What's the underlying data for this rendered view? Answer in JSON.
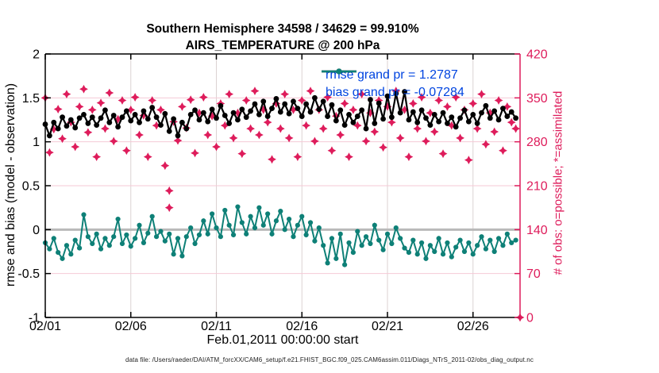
{
  "figure": {
    "title_line1": "Southern Hemisphere 34598 / 34629 = 99.910%",
    "title_line2": "AIRS_TEMPERATURE @ 200 hPa",
    "footer": "data file: /Users/raeder/DAI/ATM_forcXX/CAM6_setup/f.e21.FHIST_BGC.f09_025.CAM6assim.011/Diags_NTrS_2011-02/obs_diag_output.nc"
  },
  "legend": {
    "text_color": "#0044e0",
    "items": [
      {
        "series": "rmse",
        "label": "rmse grand pr = 1.2787",
        "color": "#000000"
      },
      {
        "series": "bias",
        "label": "bias grand pr = -0.07284",
        "color": "#0e8077"
      }
    ]
  },
  "colors": {
    "rmse": "#000000",
    "bias": "#0e8077",
    "obs": "#de1c5b",
    "zero_line": "#b9b9b9",
    "grid_horizontal": "#f5c9d6",
    "grid_vertical": "#dcd3d3",
    "axis_black": "#000000",
    "axis_right": "#de1c5b"
  },
  "chart_data": {
    "type": "line",
    "title": "Southern Hemisphere 34598 / 34629 = 99.910% — AIRS_TEMPERATURE @ 200 hPa",
    "xlabel": "Feb.01,2011 00:00:00 start",
    "left_axis": {
      "label": "rmse and bias (model - observation)",
      "range": [
        -1,
        2
      ],
      "ticks": [
        2,
        1.5,
        1,
        0.5,
        0,
        -0.5,
        -1
      ],
      "tick_labels": [
        "2",
        "1.5",
        "1",
        "0.5",
        "0",
        "-0.5",
        "-1"
      ]
    },
    "right_axis": {
      "label": "# of obs: o=possible; *=assimilated",
      "range": [
        0,
        420
      ],
      "ticks": [
        420,
        350,
        280,
        210,
        140,
        70,
        0
      ],
      "tick_labels": [
        "420",
        "350",
        "280",
        "210",
        "140",
        "70",
        "0"
      ]
    },
    "x_axis": {
      "range_days": [
        0,
        27.75
      ],
      "tick_days": [
        0,
        5,
        10,
        15,
        20,
        25
      ],
      "tick_labels": [
        "02/01",
        "02/06",
        "02/11",
        "02/16",
        "02/21",
        "02/26"
      ]
    },
    "grid": {
      "horizontal_at": [
        1.5,
        1,
        0.5,
        0,
        -0.5
      ],
      "vertical_at_days": [
        5,
        10,
        15,
        20,
        25
      ],
      "zero_line_at": 0
    },
    "time_step_days": 0.25,
    "series": [
      {
        "name": "rmse",
        "axis": "left",
        "marker": "circle",
        "color": "#000000",
        "grand_mean": 1.2787,
        "values": [
          1.2,
          1.07,
          1.22,
          1.15,
          1.28,
          1.18,
          1.25,
          1.16,
          1.27,
          1.31,
          1.21,
          1.28,
          1.19,
          1.27,
          1.36,
          1.22,
          1.3,
          1.17,
          1.28,
          1.35,
          1.24,
          1.31,
          1.22,
          1.35,
          1.26,
          1.39,
          1.28,
          1.19,
          1.32,
          1.12,
          1.26,
          1.07,
          1.22,
          1.15,
          1.31,
          1.36,
          1.25,
          1.33,
          1.23,
          1.37,
          1.27,
          1.41,
          1.3,
          1.21,
          1.33,
          1.25,
          1.37,
          1.28,
          1.35,
          1.43,
          1.31,
          1.46,
          1.29,
          1.38,
          1.49,
          1.34,
          1.43,
          1.32,
          1.46,
          1.38,
          1.29,
          1.43,
          1.34,
          1.5,
          1.37,
          1.46,
          1.29,
          1.42,
          1.24,
          1.36,
          1.19,
          1.31,
          1.22,
          1.29,
          1.36,
          1.15,
          1.48,
          1.21,
          1.44,
          1.26,
          1.52,
          1.28,
          1.55,
          1.33,
          1.57,
          1.25,
          1.34,
          1.22,
          1.36,
          1.27,
          1.19,
          1.31,
          1.23,
          1.33,
          1.21,
          1.28,
          1.17,
          1.27,
          1.36,
          1.23,
          1.31,
          1.21,
          1.33,
          1.41,
          1.27,
          1.35,
          1.25,
          1.38,
          1.29,
          1.34,
          1.27
        ]
      },
      {
        "name": "bias",
        "axis": "left",
        "marker": "circle",
        "color": "#0e8077",
        "grand_mean": -0.07284,
        "values": [
          -0.15,
          -0.22,
          -0.1,
          -0.26,
          -0.33,
          -0.18,
          -0.28,
          -0.12,
          -0.21,
          0.17,
          -0.08,
          -0.16,
          -0.05,
          -0.22,
          -0.1,
          -0.18,
          -0.08,
          0.12,
          -0.16,
          -0.06,
          -0.19,
          -0.1,
          0.05,
          -0.15,
          -0.04,
          0.15,
          -0.08,
          -0.02,
          -0.13,
          -0.05,
          -0.28,
          -0.1,
          -0.3,
          -0.08,
          0.02,
          -0.16,
          -0.06,
          0.1,
          -0.05,
          0.18,
          0.02,
          -0.08,
          0.22,
          0.05,
          -0.06,
          0.26,
          0.08,
          -0.05,
          0.15,
          0.02,
          0.25,
          0.05,
          0.18,
          -0.05,
          0.1,
          0.21,
          0.0,
          0.12,
          -0.08,
          0.05,
          0.15,
          -0.06,
          0.08,
          -0.13,
          0.02,
          -0.18,
          -0.38,
          -0.1,
          -0.33,
          -0.05,
          -0.4,
          -0.15,
          -0.26,
          -0.02,
          -0.18,
          -0.08,
          -0.16,
          0.05,
          -0.12,
          -0.23,
          -0.05,
          -0.16,
          0.02,
          -0.1,
          -0.21,
          -0.26,
          -0.12,
          -0.28,
          -0.15,
          -0.33,
          -0.18,
          -0.25,
          -0.1,
          -0.28,
          -0.15,
          -0.31,
          -0.2,
          -0.12,
          -0.25,
          -0.15,
          -0.28,
          -0.18,
          -0.08,
          -0.22,
          -0.12,
          -0.25,
          -0.1,
          -0.18,
          -0.05,
          -0.15,
          -0.12
        ]
      },
      {
        "name": "obs_assimilated",
        "axis": "right",
        "marker": "star",
        "color": "#de1c5b",
        "values": [
          350,
          263,
          300,
          332,
          285,
          356,
          311,
          272,
          336,
          364,
          295,
          331,
          256,
          342,
          301,
          358,
          281,
          316,
          346,
          266,
          331,
          351,
          291,
          322,
          256,
          346,
          306,
          331,
          242,
          175,
          312,
          282,
          336,
          302,
          347,
          262,
          326,
          351,
          291,
          321,
          272,
          341,
          306,
          356,
          286,
          326,
          261,
          346,
          301,
          361,
          291,
          331,
          311,
          252,
          341,
          301,
          356,
          286,
          331,
          256,
          346,
          306,
          361,
          281,
          331,
          301,
          351,
          266,
          321,
          291,
          341,
          256,
          331,
          306,
          356,
          281,
          326,
          296,
          346,
          271,
          336,
          311,
          361,
          286,
          331,
          256,
          341,
          301,
          351,
          281,
          326,
          296,
          346,
          261,
          336,
          306,
          351,
          286,
          331,
          251,
          341,
          301,
          356,
          276,
          326,
          296,
          346,
          266,
          336,
          311,
          301,
          0
        ]
      }
    ],
    "obs_possible_extra_points": [
      {
        "day": 7.25,
        "value": 202
      }
    ],
    "legend_entries": [
      "rmse grand pr = 1.2787",
      "bias grand pr = -0.07284"
    ],
    "legend_position": "upper right, no box"
  }
}
